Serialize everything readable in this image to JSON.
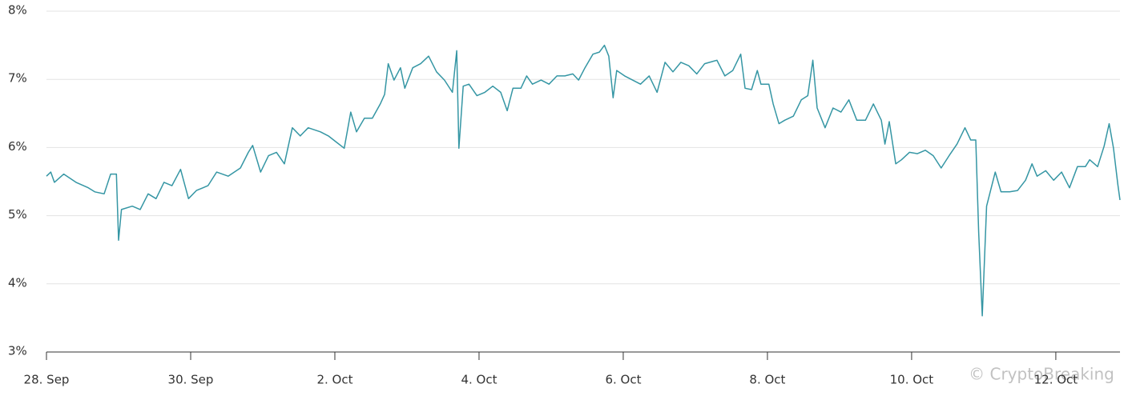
{
  "chart_data": {
    "type": "line",
    "x": [
      0,
      0.06,
      0.11,
      0.24,
      0.41,
      0.58,
      0.67,
      0.8,
      0.89,
      0.97,
      1.0,
      1.04,
      1.19,
      1.3,
      1.41,
      1.52,
      1.63,
      1.74,
      1.86,
      1.97,
      2.08,
      2.24,
      2.36,
      2.52,
      2.69,
      2.8,
      2.86,
      2.97,
      3.08,
      3.19,
      3.3,
      3.41,
      3.52,
      3.63,
      3.8,
      3.91,
      4.02,
      4.13,
      4.22,
      4.3,
      4.41,
      4.52,
      4.63,
      4.69,
      4.74,
      4.82,
      4.91,
      4.97,
      5.08,
      5.19,
      5.3,
      5.41,
      5.52,
      5.63,
      5.69,
      5.72,
      5.78,
      5.86,
      5.97,
      6.08,
      6.19,
      6.3,
      6.39,
      6.47,
      6.58,
      6.66,
      6.74,
      6.86,
      6.97,
      7.08,
      7.19,
      7.3,
      7.38,
      7.47,
      7.58,
      7.67,
      7.74,
      7.8,
      7.86,
      7.91,
      8.02,
      8.13,
      8.24,
      8.36,
      8.47,
      8.58,
      8.69,
      8.8,
      8.91,
      9.02,
      9.13,
      9.3,
      9.41,
      9.52,
      9.63,
      9.69,
      9.78,
      9.86,
      9.91,
      10.02,
      10.08,
      10.16,
      10.24,
      10.36,
      10.47,
      10.56,
      10.63,
      10.69,
      10.8,
      10.91,
      11.02,
      11.13,
      11.24,
      11.36,
      11.47,
      11.58,
      11.63,
      11.69,
      11.78,
      11.86,
      11.97,
      12.08,
      12.19,
      12.3,
      12.41,
      12.52,
      12.63,
      12.74,
      12.82,
      12.89,
      12.93,
      12.98,
      13.04,
      13.16,
      13.24,
      13.36,
      13.47,
      13.58,
      13.67,
      13.74,
      13.86,
      13.97,
      14.08,
      14.19,
      14.3,
      14.41,
      14.47,
      14.58,
      14.67,
      14.74,
      14.8,
      14.86,
      14.89
    ],
    "values": [
      5.58,
      5.64,
      5.49,
      5.61,
      5.49,
      5.41,
      5.35,
      5.32,
      5.61,
      5.61,
      4.64,
      5.09,
      5.14,
      5.09,
      5.32,
      5.25,
      5.49,
      5.44,
      5.68,
      5.25,
      5.37,
      5.44,
      5.64,
      5.58,
      5.7,
      5.93,
      6.03,
      5.64,
      5.88,
      5.93,
      5.76,
      6.29,
      6.17,
      6.29,
      6.23,
      6.17,
      6.08,
      5.99,
      6.52,
      6.23,
      6.43,
      6.43,
      6.64,
      6.78,
      7.23,
      6.99,
      7.17,
      6.87,
      7.17,
      7.23,
      7.34,
      7.11,
      6.99,
      6.81,
      7.42,
      5.99,
      6.9,
      6.93,
      6.76,
      6.81,
      6.9,
      6.81,
      6.54,
      6.87,
      6.87,
      7.05,
      6.93,
      6.99,
      6.93,
      7.05,
      7.05,
      7.08,
      6.99,
      7.17,
      7.37,
      7.4,
      7.5,
      7.34,
      6.73,
      7.13,
      7.05,
      6.99,
      6.93,
      7.05,
      6.81,
      7.25,
      7.11,
      7.25,
      7.2,
      7.08,
      7.23,
      7.28,
      7.05,
      7.13,
      7.37,
      6.87,
      6.85,
      7.13,
      6.93,
      6.93,
      6.64,
      6.35,
      6.4,
      6.46,
      6.7,
      6.76,
      7.28,
      6.58,
      6.29,
      6.58,
      6.52,
      6.7,
      6.4,
      6.4,
      6.64,
      6.4,
      6.05,
      6.38,
      5.76,
      5.82,
      5.93,
      5.91,
      5.96,
      5.88,
      5.7,
      5.88,
      6.05,
      6.29,
      6.11,
      6.11,
      4.76,
      3.53,
      5.14,
      5.64,
      5.35,
      5.35,
      5.37,
      5.52,
      5.76,
      5.58,
      5.66,
      5.52,
      5.64,
      5.41,
      5.72,
      5.72,
      5.82,
      5.72,
      6.02,
      6.35,
      5.99,
      5.46,
      5.23
    ],
    "color": "#3596a4",
    "xlim": [
      0,
      14.89
    ],
    "xticks": [
      {
        "value": 0,
        "label": "28. Sep"
      },
      {
        "value": 2,
        "label": "30. Sep"
      },
      {
        "value": 4,
        "label": "2. Oct"
      },
      {
        "value": 6,
        "label": "4. Oct"
      },
      {
        "value": 8,
        "label": "6. Oct"
      },
      {
        "value": 10,
        "label": "8. Oct"
      },
      {
        "value": 12,
        "label": "10. Oct"
      },
      {
        "value": 14,
        "label": "12. Oct"
      }
    ],
    "ylim": [
      3,
      8
    ],
    "yticks": [
      {
        "value": 3,
        "label": "3%"
      },
      {
        "value": 4,
        "label": "4%"
      },
      {
        "value": 5,
        "label": "5%"
      },
      {
        "value": 6,
        "label": "6%"
      },
      {
        "value": 7,
        "label": "7%"
      },
      {
        "value": 8,
        "label": "8%"
      }
    ],
    "grid": true,
    "watermark": "© CryptoBreaking"
  }
}
